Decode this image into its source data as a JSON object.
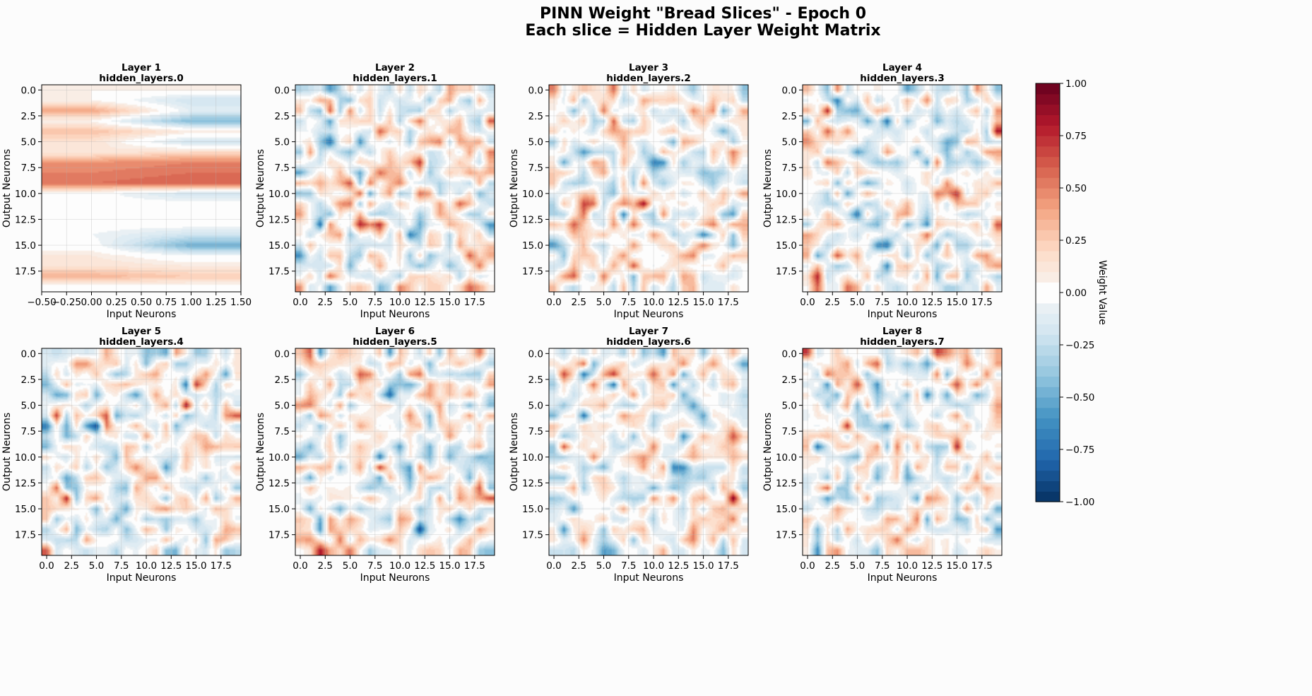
{
  "figure": {
    "title_line1": "PINN Weight \"Bread Slices\" - Epoch 0",
    "title_line2": "Each slice = Hidden Layer Weight Matrix"
  },
  "chart_data": {
    "type": "heatmap",
    "colormap": "RdBu_r (filled contours)",
    "value_range": [
      -1.0,
      1.0
    ],
    "colorbar": {
      "label": "Weight Value",
      "ticks": [
        -1.0,
        -0.75,
        -0.5,
        -0.25,
        0.0,
        0.25,
        0.5,
        0.75,
        1.0
      ],
      "tick_labels": [
        "−1.00",
        "−0.75",
        "−0.50",
        "−0.25",
        "0.00",
        "0.25",
        "0.50",
        "0.75",
        "1.00"
      ]
    },
    "grid": true,
    "panels": [
      {
        "title": "Layer 1",
        "subtitle": "hidden_layers.0",
        "xlabel": "Input Neurons",
        "ylabel": "Output Neurons",
        "xlim": [
          -0.5,
          1.5
        ],
        "ylim": [
          19.5,
          -0.5
        ],
        "xticks": [
          -0.5,
          -0.25,
          0.0,
          0.25,
          0.5,
          0.75,
          1.0,
          1.25,
          1.5
        ],
        "xtick_labels": [
          "−0.50",
          "−0.25",
          "0.00",
          "0.25",
          "0.50",
          "0.75",
          "1.00",
          "1.25",
          "1.50"
        ],
        "yticks": [
          0,
          2.5,
          5,
          7.5,
          10,
          12.5,
          15,
          17.5
        ],
        "ytick_labels": [
          "0.0",
          "2.5",
          "5.0",
          "7.5",
          "10.0",
          "12.5",
          "15.0",
          "17.5"
        ],
        "matrix_shape": [
          20,
          2
        ],
        "col0": [
          0.05,
          0.05,
          0.4,
          0.05,
          0.3,
          0.15,
          0.1,
          0.45,
          0.5,
          0.55,
          0.0,
          0.0,
          0.0,
          0.0,
          -0.05,
          0.0,
          0.1,
          0.15,
          0.35,
          0.0
        ],
        "col1": [
          0.05,
          -0.2,
          -0.1,
          -0.45,
          0.1,
          -0.2,
          0.2,
          0.5,
          0.55,
          0.6,
          -0.2,
          0.0,
          -0.05,
          0.0,
          -0.2,
          -0.5,
          -0.05,
          0.1,
          0.25,
          0.0
        ]
      },
      {
        "title": "Layer 2",
        "subtitle": "hidden_layers.1",
        "xlabel": "Input Neurons",
        "ylabel": "Output Neurons",
        "xlim": [
          -0.5,
          19.5
        ],
        "ylim": [
          19.5,
          -0.5
        ],
        "xticks": [
          0,
          2.5,
          5,
          7.5,
          10,
          12.5,
          15,
          17.5
        ],
        "xtick_labels": [
          "0.0",
          "2.5",
          "5.0",
          "7.5",
          "10.0",
          "12.5",
          "15.0",
          "17.5"
        ],
        "yticks": [
          0,
          2.5,
          5,
          7.5,
          10,
          12.5,
          15,
          17.5
        ],
        "ytick_labels": [
          "0.0",
          "2.5",
          "5.0",
          "7.5",
          "10.0",
          "12.5",
          "15.0",
          "17.5"
        ],
        "matrix_shape": [
          20,
          20
        ],
        "seed": 11
      },
      {
        "title": "Layer 3",
        "subtitle": "hidden_layers.2",
        "xlabel": "Input Neurons",
        "ylabel": "Output Neurons",
        "xlim": [
          -0.5,
          19.5
        ],
        "ylim": [
          19.5,
          -0.5
        ],
        "xticks": [
          0,
          2.5,
          5,
          7.5,
          10,
          12.5,
          15,
          17.5
        ],
        "xtick_labels": [
          "0.0",
          "2.5",
          "5.0",
          "7.5",
          "10.0",
          "12.5",
          "15.0",
          "17.5"
        ],
        "yticks": [
          0,
          2.5,
          5,
          7.5,
          10,
          12.5,
          15,
          17.5
        ],
        "ytick_labels": [
          "0.0",
          "2.5",
          "5.0",
          "7.5",
          "10.0",
          "12.5",
          "15.0",
          "17.5"
        ],
        "matrix_shape": [
          20,
          20
        ],
        "seed": 23
      },
      {
        "title": "Layer 4",
        "subtitle": "hidden_layers.3",
        "xlabel": "Input Neurons",
        "ylabel": "Output Neurons",
        "xlim": [
          -0.5,
          19.5
        ],
        "ylim": [
          19.5,
          -0.5
        ],
        "xticks": [
          0,
          2.5,
          5,
          7.5,
          10,
          12.5,
          15,
          17.5
        ],
        "xtick_labels": [
          "0.0",
          "2.5",
          "5.0",
          "7.5",
          "10.0",
          "12.5",
          "15.0",
          "17.5"
        ],
        "yticks": [
          0,
          2.5,
          5,
          7.5,
          10,
          12.5,
          15,
          17.5
        ],
        "ytick_labels": [
          "0.0",
          "2.5",
          "5.0",
          "7.5",
          "10.0",
          "12.5",
          "15.0",
          "17.5"
        ],
        "matrix_shape": [
          20,
          20
        ],
        "seed": 37
      },
      {
        "title": "Layer 5",
        "subtitle": "hidden_layers.4",
        "xlabel": "Input Neurons",
        "ylabel": "Output Neurons",
        "xlim": [
          -0.5,
          19.5
        ],
        "ylim": [
          19.5,
          -0.5
        ],
        "xticks": [
          0,
          2.5,
          5,
          7.5,
          10,
          12.5,
          15,
          17.5
        ],
        "xtick_labels": [
          "0.0",
          "2.5",
          "5.0",
          "7.5",
          "10.0",
          "12.5",
          "15.0",
          "17.5"
        ],
        "yticks": [
          0,
          2.5,
          5,
          7.5,
          10,
          12.5,
          15,
          17.5
        ],
        "ytick_labels": [
          "0.0",
          "2.5",
          "5.0",
          "7.5",
          "10.0",
          "12.5",
          "15.0",
          "17.5"
        ],
        "matrix_shape": [
          20,
          20
        ],
        "seed": 41
      },
      {
        "title": "Layer 6",
        "subtitle": "hidden_layers.5",
        "xlabel": "Input Neurons",
        "ylabel": "Output Neurons",
        "xlim": [
          -0.5,
          19.5
        ],
        "ylim": [
          19.5,
          -0.5
        ],
        "xticks": [
          0,
          2.5,
          5,
          7.5,
          10,
          12.5,
          15,
          17.5
        ],
        "xtick_labels": [
          "0.0",
          "2.5",
          "5.0",
          "7.5",
          "10.0",
          "12.5",
          "15.0",
          "17.5"
        ],
        "yticks": [
          0,
          2.5,
          5,
          7.5,
          10,
          12.5,
          15,
          17.5
        ],
        "ytick_labels": [
          "0.0",
          "2.5",
          "5.0",
          "7.5",
          "10.0",
          "12.5",
          "15.0",
          "17.5"
        ],
        "matrix_shape": [
          20,
          20
        ],
        "seed": 53
      },
      {
        "title": "Layer 7",
        "subtitle": "hidden_layers.6",
        "xlabel": "Input Neurons",
        "ylabel": "Output Neurons",
        "xlim": [
          -0.5,
          19.5
        ],
        "ylim": [
          19.5,
          -0.5
        ],
        "xticks": [
          0,
          2.5,
          5,
          7.5,
          10,
          12.5,
          15,
          17.5
        ],
        "xtick_labels": [
          "0.0",
          "2.5",
          "5.0",
          "7.5",
          "10.0",
          "12.5",
          "15.0",
          "17.5"
        ],
        "yticks": [
          0,
          2.5,
          5,
          7.5,
          10,
          12.5,
          15,
          17.5
        ],
        "ytick_labels": [
          "0.0",
          "2.5",
          "5.0",
          "7.5",
          "10.0",
          "12.5",
          "15.0",
          "17.5"
        ],
        "matrix_shape": [
          20,
          20
        ],
        "seed": 67
      },
      {
        "title": "Layer 8",
        "subtitle": "hidden_layers.7",
        "xlabel": "Input Neurons",
        "ylabel": "Output Neurons",
        "xlim": [
          -0.5,
          19.5
        ],
        "ylim": [
          19.5,
          -0.5
        ],
        "xticks": [
          0,
          2.5,
          5,
          7.5,
          10,
          12.5,
          15,
          17.5
        ],
        "xtick_labels": [
          "0.0",
          "2.5",
          "5.0",
          "7.5",
          "10.0",
          "12.5",
          "15.0",
          "17.5"
        ],
        "yticks": [
          0,
          2.5,
          5,
          7.5,
          10,
          12.5,
          15,
          17.5
        ],
        "ytick_labels": [
          "0.0",
          "2.5",
          "5.0",
          "7.5",
          "10.0",
          "12.5",
          "15.0",
          "17.5"
        ],
        "matrix_shape": [
          20,
          20
        ],
        "seed": 79
      }
    ]
  }
}
